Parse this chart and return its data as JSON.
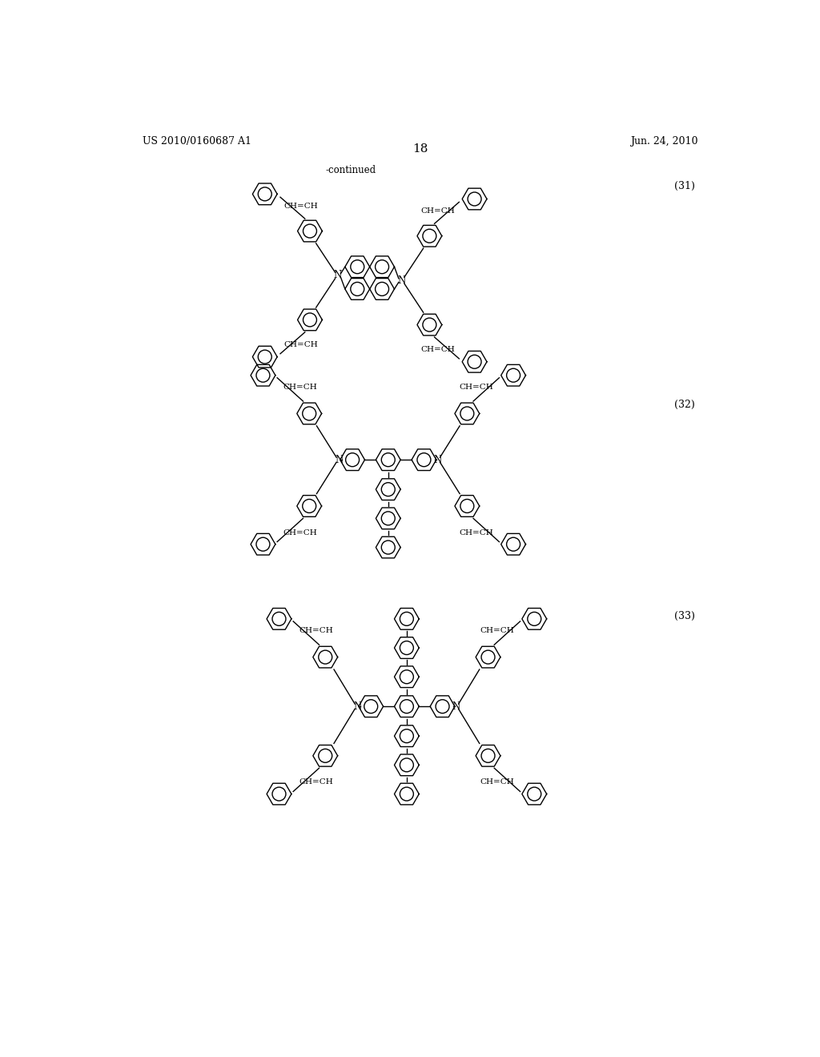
{
  "page_header_left": "US 2010/0160687 A1",
  "page_header_right": "Jun. 24, 2010",
  "page_number": "18",
  "continued_text": "-continued",
  "compound_numbers": [
    "(31)",
    "(32)",
    "(33)"
  ],
  "background_color": "#ffffff",
  "line_color": "#000000",
  "text_color": "#000000",
  "font_size_header": 9,
  "font_size_label": 8,
  "font_size_page": 11,
  "font_size_compound": 9,
  "font_family": "serif"
}
